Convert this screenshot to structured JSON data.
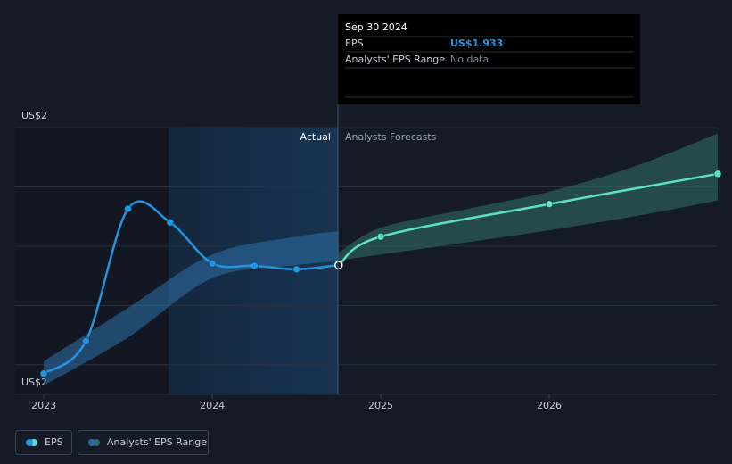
{
  "chart_data": {
    "type": "line",
    "xlim": [
      2022.83,
      2027.0
    ],
    "xticks": [
      2023,
      2024,
      2025,
      2026
    ],
    "ylim": [
      1.715,
      2.165
    ],
    "yticks": [
      {
        "value": 2.165,
        "label": "US$2"
      },
      {
        "value": 2.065,
        "label": null
      },
      {
        "value": 1.965,
        "label": null
      },
      {
        "value": 1.865,
        "label": null
      },
      {
        "value": 1.765,
        "label": null
      },
      {
        "value": 1.715,
        "label": "US$2"
      }
    ],
    "grid": true,
    "region_labels": [
      "Actual",
      "Analysts Forecasts"
    ],
    "series": [
      {
        "name": "EPS",
        "color": "#2394df",
        "x": [
          2023.0,
          2023.25,
          2023.5,
          2023.75,
          2024.0,
          2024.25,
          2024.5,
          2024.75
        ],
        "values": [
          1.75,
          1.805,
          2.028,
          2.005,
          1.936,
          1.932,
          1.926,
          1.933
        ],
        "forecast": {
          "color": "#5ce0c6",
          "x": [
            2024.75,
            2025.0,
            2026.0,
            2027.0
          ],
          "values": [
            1.933,
            1.981,
            2.036,
            2.087
          ]
        }
      }
    ],
    "range": {
      "name": "Analysts' EPS Range",
      "color": "#2b6aa0",
      "actual": {
        "x": [
          2023.0,
          2023.5,
          2024.0,
          2024.5,
          2024.75
        ],
        "high": [
          1.771,
          1.861,
          1.951,
          1.981,
          1.99
        ],
        "low": [
          1.73,
          1.811,
          1.911,
          1.933,
          1.939
        ]
      },
      "forecast": {
        "color": "#2e6a62",
        "x": [
          2024.75,
          2025.0,
          2025.5,
          2026.0,
          2026.5,
          2027.0
        ],
        "high": [
          1.954,
          1.996,
          2.027,
          2.057,
          2.099,
          2.155
        ],
        "low": [
          1.941,
          1.951,
          1.971,
          1.992,
          2.015,
          2.042
        ]
      }
    },
    "tooltip": {
      "date": "Sep 30 2024",
      "rows": [
        {
          "label": "EPS",
          "value": "US$1.933"
        },
        {
          "label": "Analysts' EPS Range",
          "value": "No data"
        }
      ]
    }
  }
}
